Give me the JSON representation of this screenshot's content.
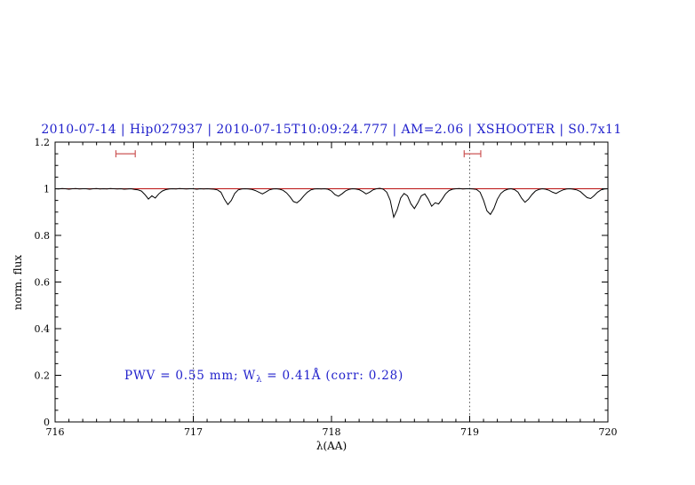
{
  "colors": {
    "title_blue": "#2222cc",
    "annotation_blue": "#2222cc",
    "spectrum_black": "#000000",
    "continuum_red": "#bb1111",
    "marker_red": "#cc5555",
    "dotted_line": "#555555"
  },
  "chart_data": {
    "type": "line",
    "title": "2010-07-14 | Hip027937 | 2010-07-15T10:09:24.777 | AM=2.06 | XSHOOTER | S0.7x11",
    "xlabel": "λ(AA)",
    "ylabel": "norm. flux",
    "xlim": [
      716,
      720
    ],
    "ylim": [
      0,
      1.2
    ],
    "x_ticks": [
      716,
      717,
      718,
      719,
      720
    ],
    "x_minor_step": 0.1,
    "y_tick_values": [
      0,
      0.2,
      0.4,
      0.6,
      0.8,
      1,
      1.2
    ],
    "y_tick_labels": [
      "0",
      "0.2",
      "0.4",
      "0.6",
      "0.8",
      "1",
      "1.2"
    ],
    "y_minor_step": 0.05,
    "grid": false,
    "vlines": [
      717,
      719
    ],
    "continuum": {
      "y": 1.0,
      "color": "#bb1111"
    },
    "region_markers": [
      {
        "x_min": 716.44,
        "x_max": 716.58,
        "y": 1.15
      },
      {
        "x_min": 718.96,
        "x_max": 719.08,
        "y": 1.15
      }
    ],
    "annotation": {
      "prefix": "PWV = 0.55 mm; W",
      "sub": "λ",
      "suffix": " = 0.41Å (corr: 0.28)",
      "x": 716.5,
      "y": 0.2
    },
    "series": [
      {
        "name": "observed spectrum",
        "color": "#000000",
        "x_start": 716.0,
        "x_step": 0.025,
        "y": [
          1.0,
          0.999,
          1.001,
          1.0,
          0.998,
          1.0,
          1.001,
          0.999,
          1.0,
          1.0,
          0.998,
          1.0,
          1.001,
          0.999,
          1.0,
          0.999,
          1.001,
          1.0,
          0.999,
          1.0,
          0.998,
          0.999,
          1.0,
          0.997,
          0.995,
          0.99,
          0.975,
          0.956,
          0.97,
          0.96,
          0.978,
          0.99,
          0.996,
          0.999,
          1.0,
          0.999,
          1.001,
          1.0,
          0.999,
          1.0,
          1.0,
          0.998,
          1.0,
          0.999,
          1.0,
          0.999,
          0.998,
          0.995,
          0.985,
          0.955,
          0.932,
          0.95,
          0.98,
          0.995,
          0.999,
          1.0,
          0.999,
          0.997,
          0.992,
          0.985,
          0.978,
          0.986,
          0.995,
          0.999,
          1.0,
          0.998,
          0.993,
          0.982,
          0.965,
          0.945,
          0.94,
          0.952,
          0.97,
          0.985,
          0.995,
          0.999,
          1.0,
          0.999,
          1.0,
          0.998,
          0.99,
          0.975,
          0.968,
          0.978,
          0.99,
          0.997,
          1.0,
          0.999,
          0.996,
          0.988,
          0.978,
          0.985,
          0.995,
          1.0,
          1.002,
          0.998,
          0.985,
          0.95,
          0.878,
          0.91,
          0.96,
          0.98,
          0.97,
          0.935,
          0.915,
          0.94,
          0.97,
          0.978,
          0.955,
          0.925,
          0.94,
          0.935,
          0.955,
          0.978,
          0.992,
          0.998,
          1.0,
          1.001,
          0.999,
          1.0,
          1.0,
          0.999,
          0.997,
          0.985,
          0.95,
          0.905,
          0.89,
          0.915,
          0.955,
          0.98,
          0.992,
          0.998,
          1.0,
          0.996,
          0.985,
          0.96,
          0.942,
          0.955,
          0.975,
          0.99,
          0.997,
          1.0,
          0.998,
          0.993,
          0.985,
          0.98,
          0.988,
          0.995,
          0.999,
          1.0,
          0.998,
          0.995,
          0.988,
          0.975,
          0.962,
          0.958,
          0.97,
          0.985,
          0.995,
          0.999,
          1.0
        ]
      }
    ]
  }
}
